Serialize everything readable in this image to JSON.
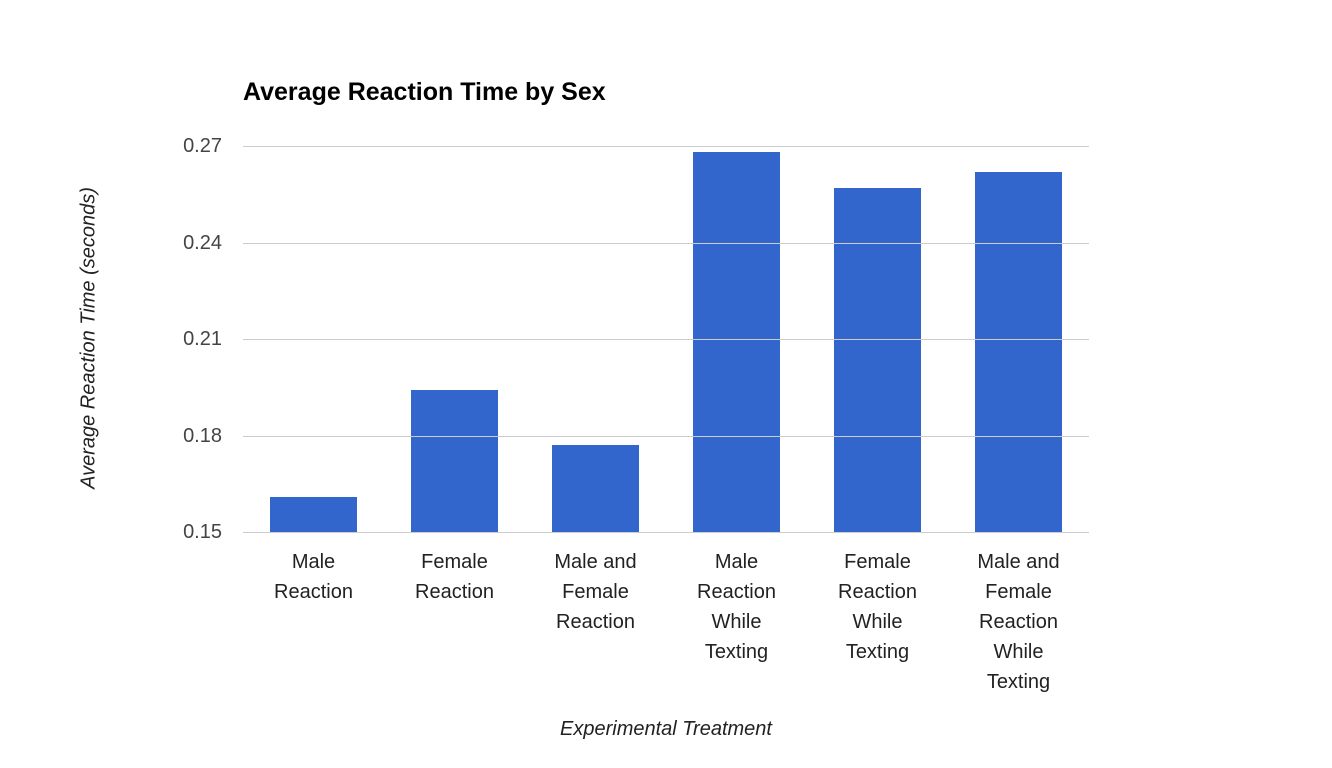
{
  "chart_data": {
    "type": "bar",
    "title": "Average Reaction Time by Sex",
    "xlabel": "Experimental Treatment",
    "ylabel": "Average Reaction Time (seconds)",
    "categories": [
      "Male Reaction",
      "Female Reaction",
      "Male and Female Reaction",
      "Male Reaction While Texting",
      "Female Reaction While Texting",
      "Male and Female Reaction While Texting"
    ],
    "category_labels_display": [
      "Male\nReaction",
      "Female\nReaction",
      "Male and\nFemale\nReaction",
      "Male\nReaction\nWhile\nTexting",
      "Female\nReaction\nWhile\nTexting",
      "Male and\nFemale\nReaction\nWhile\nTexting"
    ],
    "values": [
      0.161,
      0.194,
      0.177,
      0.268,
      0.257,
      0.262
    ],
    "ylim": [
      0.15,
      0.27
    ],
    "ytick_labels": [
      "0.27",
      "0.24",
      "0.21",
      "0.18",
      "0.15"
    ],
    "grid": "horizontal",
    "legend": "none",
    "colors": {
      "bar": "#3366cc",
      "gridline": "#cccccc",
      "tick_label": "#444444",
      "category_label": "#222222",
      "axis_title": "#222222",
      "title": "#000000",
      "background": "#ffffff"
    }
  }
}
